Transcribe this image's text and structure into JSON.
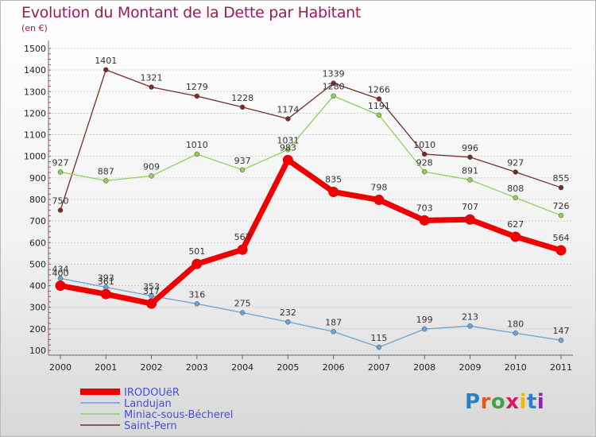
{
  "title": "Evolution du Montant de la Dette par Habitant",
  "unit": "(en €)",
  "logo": {
    "text": "Proxiti",
    "colors": [
      "#2e7fc1",
      "#e0591c",
      "#43a047",
      "#d81b60",
      "#f2b705",
      "#2e7fc1",
      "#8e24aa"
    ]
  },
  "chart_data": {
    "type": "line",
    "x": [
      "2000",
      "2001",
      "2002",
      "2003",
      "2004",
      "2005",
      "2006",
      "2007",
      "2008",
      "2009",
      "2010",
      "2011"
    ],
    "ylim": [
      100,
      1500
    ],
    "yticks": [
      100,
      200,
      300,
      400,
      500,
      600,
      700,
      800,
      900,
      1000,
      1100,
      1200,
      1300,
      1400,
      1500
    ],
    "grid": "horizontal",
    "legend_position": "bottom-left",
    "series": [
      {
        "name": "Saint-Pern",
        "color": "#7b2a2a",
        "width": 1.3,
        "values": [
          750,
          1401,
          1321,
          1279,
          1228,
          1174,
          1339,
          1266,
          1010,
          996,
          927,
          855
        ],
        "labels": [
          "750",
          "1401",
          "1321",
          "1279",
          "1228",
          "1174",
          "1339",
          "1266",
          "1010",
          "996",
          "927",
          "855"
        ]
      },
      {
        "name": "Miniac-sous-Bécherel",
        "color": "#8ed15a",
        "width": 1.3,
        "values": [
          927,
          887,
          909,
          1010,
          937,
          1031,
          1280,
          1191,
          928,
          891,
          808,
          726
        ],
        "labels": [
          "927",
          "887",
          "909",
          "1010",
          "937",
          "1031",
          "1280",
          "1191",
          "928",
          "891",
          "808",
          "726"
        ]
      },
      {
        "name": "Landujan",
        "color": "#6aa3d6",
        "width": 1.3,
        "values": [
          434,
          393,
          353,
          316,
          275,
          232,
          187,
          115,
          199,
          213,
          180,
          147
        ],
        "labels": [
          "434",
          "393",
          "353",
          "316",
          "275",
          "232",
          "187",
          "115",
          "199",
          "213",
          "180",
          "147"
        ]
      },
      {
        "name": "IRODOUëR",
        "color": "#ee0000",
        "width": 7,
        "values": [
          400,
          361,
          317,
          501,
          567,
          983,
          835,
          798,
          703,
          707,
          627,
          564
        ],
        "labels": [
          "400",
          "361",
          "317",
          "501",
          "567",
          "983",
          "835",
          "798",
          "703",
          "707",
          "627",
          "564"
        ]
      }
    ],
    "legend": [
      "IRODOUëR",
      "Landujan",
      "Miniac-sous-Bécherel",
      "Saint-Pern"
    ]
  }
}
